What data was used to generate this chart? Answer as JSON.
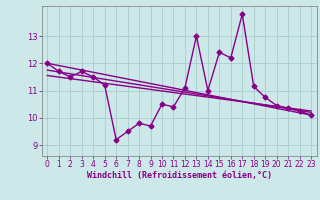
{
  "xlabel": "Windchill (Refroidissement éolien,°C)",
  "background_color": "#cce8e8",
  "grid_color": "#aacccc",
  "line_color": "#880088",
  "ylim": [
    8.6,
    14.1
  ],
  "xlim": [
    -0.5,
    23.5
  ],
  "yticks": [
    9,
    10,
    11,
    12,
    13
  ],
  "xticks": [
    0,
    1,
    2,
    3,
    4,
    5,
    6,
    7,
    8,
    9,
    10,
    11,
    12,
    13,
    14,
    15,
    16,
    17,
    18,
    19,
    20,
    21,
    22,
    23
  ],
  "series": {
    "main": {
      "x": [
        0,
        1,
        2,
        3,
        4,
        5,
        6,
        7,
        8,
        9,
        10,
        11,
        12,
        13,
        14,
        15,
        16,
        17,
        18,
        19,
        20,
        21,
        22,
        23
      ],
      "y": [
        12.0,
        11.7,
        11.5,
        11.7,
        11.5,
        11.2,
        9.2,
        9.5,
        9.8,
        9.7,
        10.5,
        10.4,
        11.1,
        13.0,
        11.0,
        12.4,
        12.2,
        13.8,
        11.15,
        10.75,
        10.45,
        10.35,
        10.25,
        10.1
      ]
    },
    "trend1": {
      "x": [
        0,
        23
      ],
      "y": [
        12.0,
        10.1
      ]
    },
    "trend2": {
      "x": [
        0,
        23
      ],
      "y": [
        11.75,
        10.2
      ]
    },
    "trend3": {
      "x": [
        0,
        23
      ],
      "y": [
        11.55,
        10.25
      ]
    }
  },
  "marker": "D",
  "markersize": 2.5,
  "linewidth": 1.0
}
